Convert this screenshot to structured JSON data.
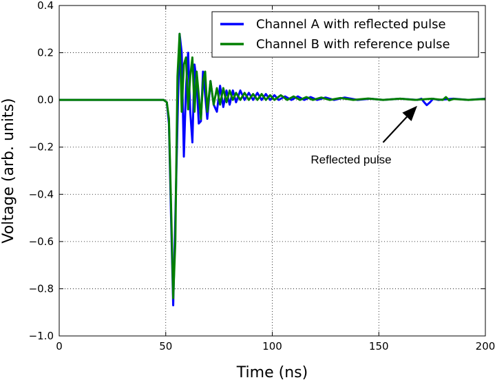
{
  "chart_data": {
    "type": "line",
    "title": "",
    "xlabel": "Time (ns)",
    "ylabel": "Voltage (arb. units)",
    "xlim": [
      0,
      200
    ],
    "ylim": [
      -1.0,
      0.4
    ],
    "xticks": [
      "0",
      "50",
      "100",
      "150",
      "200"
    ],
    "yticks": [
      "0.4",
      "0.2",
      "0.0",
      "−0.2",
      "−0.4",
      "−0.6",
      "−0.8",
      "−1.0"
    ],
    "grid": true,
    "legend_position": "top-right",
    "series": [
      {
        "name": "Channel A with reflected pulse",
        "color": "#0000ff",
        "points": [
          [
            0,
            0.0
          ],
          [
            49,
            0.0
          ],
          [
            50.5,
            -0.01
          ],
          [
            51.5,
            -0.1
          ],
          [
            52.5,
            -0.5
          ],
          [
            53.5,
            -0.87
          ],
          [
            54.5,
            -0.5
          ],
          [
            55.5,
            -0.1
          ],
          [
            56.5,
            0.28
          ],
          [
            57.5,
            0.2
          ],
          [
            58.5,
            -0.24
          ],
          [
            59.5,
            0.05
          ],
          [
            60.5,
            0.2
          ],
          [
            61.5,
            -0.05
          ],
          [
            62.5,
            -0.18
          ],
          [
            63.5,
            0.15
          ],
          [
            64.5,
            0.08
          ],
          [
            65.5,
            -0.1
          ],
          [
            66.5,
            -0.09
          ],
          [
            67.5,
            0.12
          ],
          [
            68.5,
            0.02
          ],
          [
            69.5,
            -0.08
          ],
          [
            71,
            0.08
          ],
          [
            72.5,
            -0.02
          ],
          [
            74,
            -0.05
          ],
          [
            75.5,
            0.06
          ],
          [
            77,
            -0.03
          ],
          [
            78.5,
            0.04
          ],
          [
            80,
            -0.02
          ],
          [
            81.5,
            0.04
          ],
          [
            83,
            -0.01
          ],
          [
            85,
            0.04
          ],
          [
            87,
            0.0
          ],
          [
            89,
            0.03
          ],
          [
            91,
            0.0
          ],
          [
            93,
            0.03
          ],
          [
            95,
            0.0
          ],
          [
            97,
            0.025
          ],
          [
            99,
            0.0
          ],
          [
            101,
            0.02
          ],
          [
            103,
            0.0
          ],
          [
            106,
            0.015
          ],
          [
            109,
            0.0
          ],
          [
            112,
            0.015
          ],
          [
            115,
            0.0
          ],
          [
            118,
            0.012
          ],
          [
            121,
            0.0
          ],
          [
            125,
            0.01
          ],
          [
            129,
            0.0
          ],
          [
            134,
            0.01
          ],
          [
            140,
            0.0
          ],
          [
            146,
            0.005
          ],
          [
            152,
            0.0
          ],
          [
            160,
            0.005
          ],
          [
            168,
            0.0
          ],
          [
            170,
            0.005
          ],
          [
            171.5,
            -0.012
          ],
          [
            172.5,
            -0.022
          ],
          [
            174,
            -0.01
          ],
          [
            175.5,
            0.005
          ],
          [
            178,
            0.0
          ],
          [
            185,
            0.005
          ],
          [
            192,
            0.0
          ],
          [
            200,
            0.005
          ]
        ]
      },
      {
        "name": "Channel B with reference pulse",
        "color": "#007f00",
        "points": [
          [
            0,
            0.0
          ],
          [
            49,
            0.0
          ],
          [
            50.5,
            -0.01
          ],
          [
            51.5,
            -0.08
          ],
          [
            52.5,
            -0.45
          ],
          [
            53.5,
            -0.84
          ],
          [
            54.5,
            -0.6
          ],
          [
            55.5,
            0.1
          ],
          [
            56.5,
            0.28
          ],
          [
            57.5,
            -0.05
          ],
          [
            58.5,
            0.15
          ],
          [
            59.5,
            0.18
          ],
          [
            60.5,
            -0.04
          ],
          [
            61.5,
            0.1
          ],
          [
            62.5,
            0.18
          ],
          [
            63.5,
            -0.05
          ],
          [
            64.5,
            0.12
          ],
          [
            65.5,
            0.02
          ],
          [
            66.5,
            -0.08
          ],
          [
            67.5,
            0.08
          ],
          [
            68.5,
            0.12
          ],
          [
            69.5,
            -0.05
          ],
          [
            71,
            0.08
          ],
          [
            72.5,
            -0.02
          ],
          [
            74,
            0.05
          ],
          [
            75.5,
            -0.02
          ],
          [
            77,
            0.05
          ],
          [
            78.5,
            -0.01
          ],
          [
            80,
            0.04
          ],
          [
            81.5,
            0.0
          ],
          [
            83,
            0.03
          ],
          [
            85,
            0.0
          ],
          [
            87,
            0.03
          ],
          [
            89,
            0.0
          ],
          [
            91,
            0.025
          ],
          [
            93,
            0.0
          ],
          [
            95,
            0.025
          ],
          [
            97,
            0.0
          ],
          [
            99,
            0.02
          ],
          [
            101,
            0.0
          ],
          [
            104,
            0.02
          ],
          [
            107,
            0.0
          ],
          [
            110,
            0.015
          ],
          [
            113,
            0.0
          ],
          [
            116,
            0.012
          ],
          [
            119,
            0.0
          ],
          [
            123,
            0.01
          ],
          [
            127,
            0.0
          ],
          [
            132,
            0.008
          ],
          [
            138,
            0.0
          ],
          [
            145,
            0.006
          ],
          [
            152,
            0.0
          ],
          [
            160,
            0.005
          ],
          [
            167,
            0.0
          ],
          [
            175,
            0.005
          ],
          [
            180,
            0.0
          ],
          [
            181.5,
            0.012
          ],
          [
            183,
            -0.002
          ],
          [
            185,
            0.004
          ],
          [
            192,
            0.0
          ],
          [
            200,
            0.004
          ]
        ]
      }
    ],
    "annotations": [
      {
        "text": "Reflected pulse",
        "x": 120,
        "y": -0.255,
        "arrow_from": [
          152,
          -0.18
        ],
        "arrow_to": [
          168,
          -0.025
        ]
      }
    ]
  }
}
